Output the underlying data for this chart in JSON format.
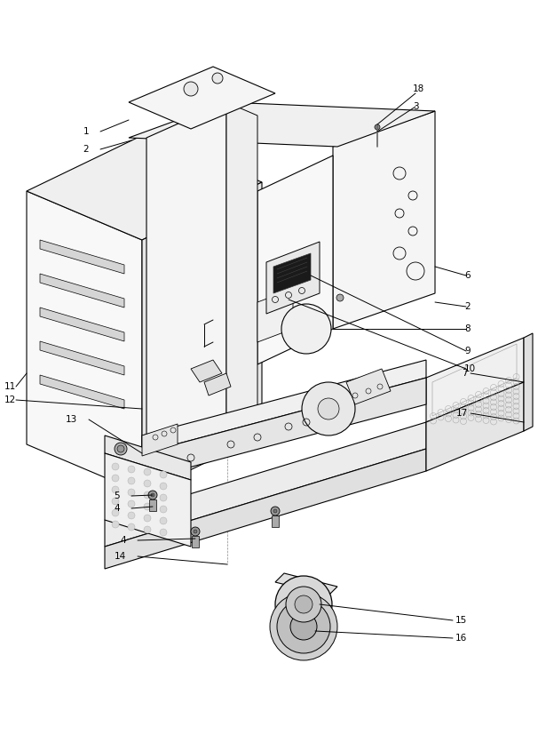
{
  "bg_color": "#ffffff",
  "line_color": "#000000",
  "lw": 0.8,
  "figsize": [
    6.06,
    8.27
  ],
  "dpi": 100,
  "label_fs": 7.5,
  "leader_lw": 0.5,
  "leader_color": "#000000"
}
